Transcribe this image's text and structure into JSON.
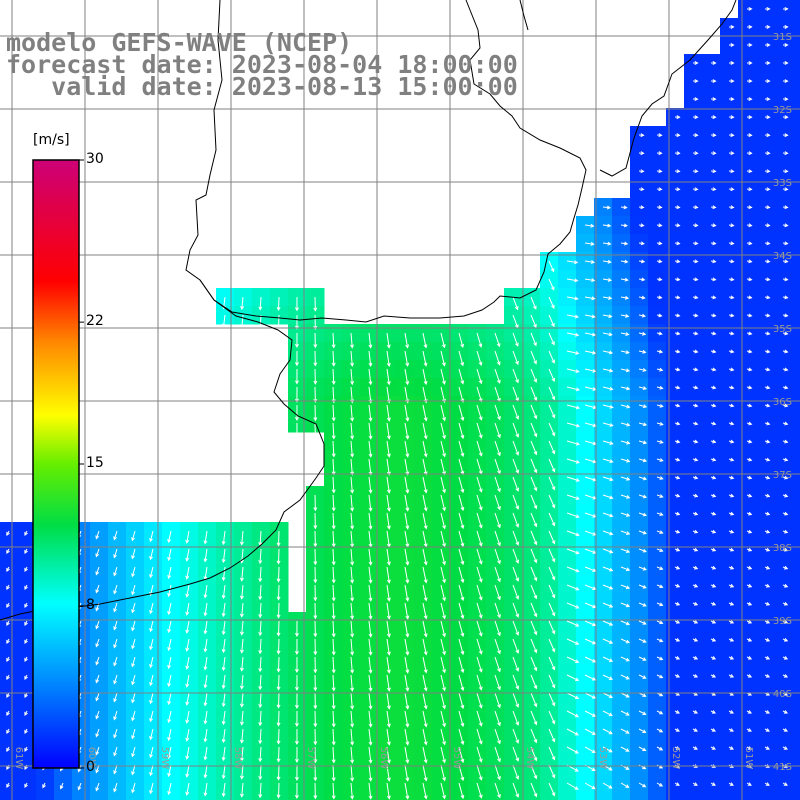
{
  "title": {
    "line1": "modelo GEFS-WAVE (NCEP)",
    "line2": "forecast date: 2023-08-04 18:00:00",
    "line3": "   valid date: 2023-08-13 15:00:00"
  },
  "colorbar": {
    "unit": "[m/s]",
    "ticks": [
      {
        "label": "30",
        "value": 30
      },
      {
        "label": "22",
        "value": 22
      },
      {
        "label": "15",
        "value": 15
      },
      {
        "label": "8",
        "value": 8
      },
      {
        "label": "0",
        "value": 0
      }
    ],
    "min": 0,
    "max": 30
  },
  "map": {
    "lat_labels": [
      "31S",
      "32S",
      "33S",
      "34S",
      "35S",
      "36S",
      "37S",
      "38S",
      "39S",
      "40S",
      "41S"
    ],
    "lon_labels": [
      "61W",
      "60W",
      "59W",
      "58W",
      "57W",
      "56W",
      "55W",
      "54W",
      "53W",
      "52W",
      "51W"
    ],
    "extent": {
      "lon_min": -61.5,
      "lon_max": -50.5,
      "lat_min": -41.4,
      "lat_max": -30.6
    },
    "land_color": "#ffffff",
    "grid_color": "#808080",
    "coast_color": "#000000",
    "vector_color": "#ffffff"
  }
}
